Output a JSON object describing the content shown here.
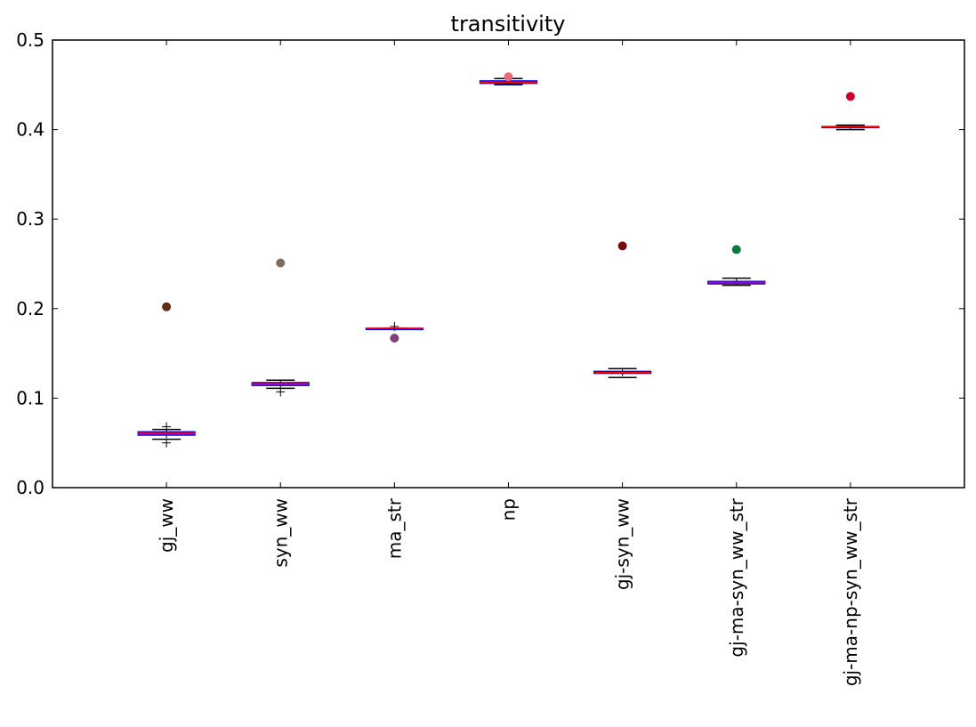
{
  "chart_data": {
    "type": "box",
    "title": "transitivity",
    "xlabel": "",
    "ylabel": "",
    "ylim": [
      0.0,
      0.5
    ],
    "yticks": [
      "0.0",
      "0.1",
      "0.2",
      "0.3",
      "0.4",
      "0.5"
    ],
    "categories": [
      "gj_ww",
      "syn_ww",
      "ma_str",
      "np",
      "gj-syn_ww",
      "gj-ma-syn_ww_str",
      "gj-ma-np-syn_ww_str"
    ],
    "boxes": [
      {
        "q1": 0.0585,
        "median": 0.0605,
        "q3": 0.0625,
        "whisker_low": 0.054,
        "whisker_high": 0.065,
        "fliers": [
          0.05,
          0.068
        ],
        "point": 0.202,
        "point_color": "#5a2e0e"
      },
      {
        "q1": 0.114,
        "median": 0.116,
        "q3": 0.1175,
        "whisker_low": 0.111,
        "whisker_high": 0.12,
        "fliers": [
          0.107
        ],
        "point": 0.251,
        "point_color": "#7e6a5e"
      },
      {
        "q1": 0.178,
        "median": 0.178,
        "q3": 0.178,
        "whisker_low": 0.177,
        "whisker_high": 0.178,
        "fliers": [
          0.18
        ],
        "point": 0.167,
        "point_color": "#82407a"
      },
      {
        "q1": 0.4515,
        "median": 0.4525,
        "q3": 0.4545,
        "whisker_low": 0.45,
        "whisker_high": 0.457,
        "fliers": [],
        "point": 0.459,
        "point_color": "#e96a78"
      },
      {
        "q1": 0.1275,
        "median": 0.1285,
        "q3": 0.13,
        "whisker_low": 0.123,
        "whisker_high": 0.133,
        "fliers": [],
        "point": 0.27,
        "point_color": "#7a0a0a"
      },
      {
        "q1": 0.2275,
        "median": 0.229,
        "q3": 0.2305,
        "whisker_low": 0.226,
        "whisker_high": 0.234,
        "fliers": [],
        "point": 0.266,
        "point_color": "#057a3c"
      },
      {
        "q1": 0.4025,
        "median": 0.403,
        "q3": 0.4035,
        "whisker_low": 0.4,
        "whisker_high": 0.405,
        "fliers": [],
        "point": 0.437,
        "point_color": "#c8002a"
      }
    ],
    "box_color": "#0000ff",
    "box_fill": "#8b1ab8",
    "median_color": "#ff0000",
    "whisker_color": "#000000",
    "grid": false,
    "legend": "none"
  }
}
